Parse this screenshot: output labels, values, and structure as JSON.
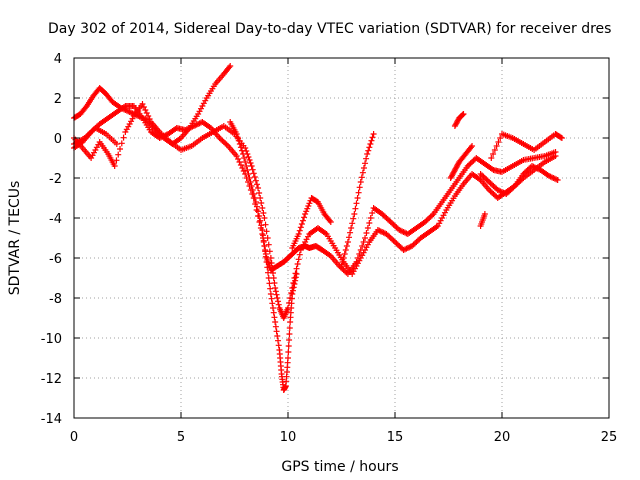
{
  "chart_data": {
    "type": "scatter",
    "title": "Day 302 of 2014, Sidereal Day-to-day VTEC variation (SDTVAR) for receiver dres",
    "xlabel": "GPS time / hours",
    "ylabel": "SDTVAR / TECUs",
    "xlim": [
      0,
      25
    ],
    "ylim": [
      -14,
      4
    ],
    "xticks": [
      0,
      5,
      10,
      15,
      20,
      25
    ],
    "yticks": [
      -14,
      -12,
      -10,
      -8,
      -6,
      -4,
      -2,
      0,
      2,
      4
    ],
    "grid": true,
    "marker": "plus",
    "color": "#ff0000",
    "series": [
      {
        "x": [
          0.0,
          0.3,
          0.6,
          0.9,
          1.2,
          1.5,
          1.8,
          2.2,
          2.6,
          3.0,
          3.4,
          3.8,
          4.2,
          4.6,
          5.0,
          5.4,
          5.8,
          6.2,
          6.6,
          7.0,
          7.3
        ],
        "y": [
          1.0,
          1.2,
          1.6,
          2.1,
          2.5,
          2.2,
          1.8,
          1.5,
          1.3,
          1.1,
          0.9,
          0.4,
          0.0,
          -0.3,
          0.0,
          0.5,
          1.2,
          2.0,
          2.7,
          3.2,
          3.6
        ]
      },
      {
        "x": [
          0.0,
          0.4,
          0.8,
          1.2,
          1.6,
          2.0,
          2.4,
          2.8,
          3.2,
          3.6,
          4.0,
          4.4,
          4.8,
          5.2,
          5.6,
          6.0,
          6.4,
          6.8,
          7.2,
          7.6,
          8.0,
          8.4,
          8.8,
          9.0,
          9.2,
          9.5,
          9.8,
          10.0,
          10.2,
          10.5,
          10.8,
          11.0,
          11.3,
          11.6,
          12.0,
          12.4,
          12.8,
          13.2,
          13.6,
          14.0,
          14.4,
          14.8,
          15.2,
          15.6,
          16.0,
          16.4,
          16.8,
          17.2,
          17.6,
          18.0,
          18.4,
          18.8,
          19.2,
          19.6,
          20.0,
          20.5,
          21.0,
          21.5,
          22.0,
          22.5
        ],
        "y": [
          -0.5,
          -0.2,
          0.3,
          0.7,
          1.0,
          1.3,
          1.6,
          1.6,
          1.0,
          0.3,
          0.0,
          0.2,
          0.5,
          0.4,
          0.6,
          0.8,
          0.5,
          0.0,
          -0.4,
          -0.9,
          -1.8,
          -3.0,
          -4.8,
          -6.0,
          -6.6,
          -6.4,
          -6.2,
          -6.0,
          -5.8,
          -5.5,
          -5.4,
          -5.5,
          -5.4,
          -5.6,
          -5.9,
          -6.4,
          -6.8,
          -6.2,
          -5.0,
          -3.5,
          -3.8,
          -4.2,
          -4.6,
          -4.8,
          -4.5,
          -4.2,
          -3.8,
          -3.2,
          -2.6,
          -2.0,
          -1.4,
          -1.0,
          -1.3,
          -1.6,
          -1.7,
          -1.4,
          -1.1,
          -1.0,
          -0.9,
          -0.7
        ]
      },
      {
        "x": [
          0.0,
          0.4,
          0.8,
          1.2,
          1.6,
          1.9,
          2.4,
          2.8,
          3.2,
          3.6,
          4.0,
          4.5,
          5.0,
          5.5,
          6.0,
          6.5,
          7.0,
          7.5,
          8.0,
          8.3,
          8.6,
          8.9,
          9.2,
          9.4,
          9.6,
          9.8,
          10.0,
          10.3,
          10.6,
          11.0,
          11.4,
          11.8,
          12.2,
          12.6,
          13.0,
          13.4,
          13.8,
          14.2,
          14.6,
          15.0,
          15.4,
          15.8,
          16.2,
          16.6,
          17.0,
          17.4,
          17.8,
          18.2,
          18.6,
          19.0,
          19.4,
          19.8,
          20.2,
          20.6,
          21.0,
          21.5,
          22.0,
          22.5
        ],
        "y": [
          0.0,
          -0.5,
          -1.0,
          -0.2,
          -0.8,
          -1.4,
          0.3,
          1.1,
          1.7,
          0.8,
          0.3,
          -0.2,
          -0.6,
          -0.4,
          0.0,
          0.3,
          0.6,
          0.2,
          -0.5,
          -1.4,
          -2.5,
          -4.0,
          -6.0,
          -7.5,
          -8.5,
          -9.0,
          -8.5,
          -7.0,
          -5.6,
          -4.8,
          -4.5,
          -4.8,
          -5.5,
          -6.2,
          -6.8,
          -6.0,
          -5.2,
          -4.6,
          -4.8,
          -5.2,
          -5.6,
          -5.4,
          -5.0,
          -4.7,
          -4.4,
          -3.6,
          -2.9,
          -2.3,
          -1.8,
          -2.1,
          -2.6,
          -3.0,
          -2.7,
          -2.4,
          -2.0,
          -1.6,
          -1.2,
          -0.9
        ]
      },
      {
        "x": [
          0.0,
          0.5,
          1.0,
          1.5,
          2.0
        ],
        "y": [
          -0.3,
          0.0,
          0.5,
          0.2,
          -0.3
        ]
      },
      {
        "x": [
          7.3,
          7.6,
          7.9,
          8.2,
          8.5,
          8.8,
          9.0,
          9.2,
          9.4,
          9.6,
          9.7,
          9.8,
          9.9,
          10.0,
          10.1,
          10.2,
          10.4
        ],
        "y": [
          0.8,
          0.2,
          -0.8,
          -2.0,
          -3.2,
          -4.6,
          -6.2,
          -7.8,
          -9.2,
          -10.6,
          -11.8,
          -12.6,
          -12.4,
          -11.0,
          -9.2,
          -7.8,
          -6.8
        ]
      },
      {
        "x": [
          10.2,
          10.5,
          10.8,
          11.1,
          11.4,
          11.7,
          12.0
        ],
        "y": [
          -5.5,
          -4.8,
          -3.8,
          -3.0,
          -3.2,
          -3.8,
          -4.2
        ]
      },
      {
        "x": [
          12.5,
          12.8,
          13.1,
          13.4,
          13.7,
          14.0
        ],
        "y": [
          -6.4,
          -5.2,
          -3.8,
          -2.2,
          -0.8,
          0.2
        ]
      },
      {
        "x": [
          17.8,
          18.0,
          18.2
        ],
        "y": [
          0.6,
          1.0,
          1.2
        ]
      },
      {
        "x": [
          17.6,
          17.8,
          18.0,
          18.3,
          18.6
        ],
        "y": [
          -2.0,
          -1.6,
          -1.2,
          -0.8,
          -0.4
        ]
      },
      {
        "x": [
          19.0,
          19.2
        ],
        "y": [
          -4.4,
          -3.8
        ]
      },
      {
        "x": [
          19.0,
          19.4,
          19.8,
          20.2,
          20.6,
          21.0,
          21.4,
          21.8,
          22.2,
          22.6
        ],
        "y": [
          -1.8,
          -2.2,
          -2.6,
          -2.8,
          -2.4,
          -1.8,
          -1.4,
          -1.6,
          -1.9,
          -2.1
        ]
      },
      {
        "x": [
          19.5,
          20.0,
          20.5,
          21.0,
          21.5,
          22.0,
          22.5,
          22.8
        ],
        "y": [
          -1.0,
          0.2,
          0.0,
          -0.3,
          -0.6,
          -0.2,
          0.2,
          0.0
        ]
      }
    ]
  }
}
